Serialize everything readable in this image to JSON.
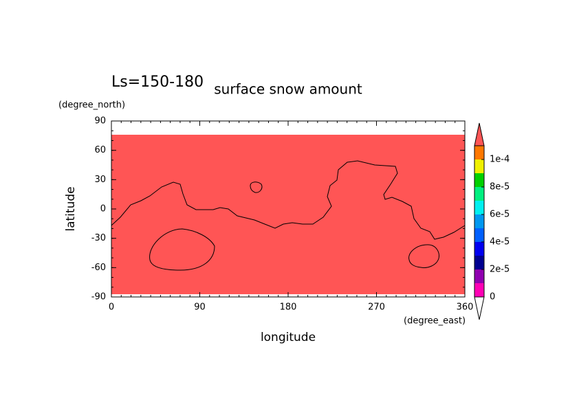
{
  "chart_data": {
    "type": "contour",
    "title": "surface snow amount",
    "subtitle": "Ls=150-180",
    "x_label": "longitude",
    "x_units": "(degree_east)",
    "y_label": "latitude",
    "y_units": "(degree_north)",
    "xlim": [
      0,
      360
    ],
    "xticks": [
      0,
      90,
      180,
      270,
      360
    ],
    "ylim": [
      -90,
      90
    ],
    "yticks": [
      -90,
      -60,
      -30,
      0,
      30,
      60,
      90
    ],
    "fill_color": "#ff5555",
    "colorbar": {
      "levels": [
        0,
        1e-05,
        2e-05,
        3e-05,
        4e-05,
        5e-05,
        6e-05,
        7e-05,
        8e-05,
        9e-05,
        0.0001,
        0.00011
      ],
      "colors": [
        "#ff00b4",
        "#9000b0",
        "#000090",
        "#0000f0",
        "#0060ff",
        "#0098f0",
        "#00f0f0",
        "#00f080",
        "#00d000",
        "#f0f000",
        "#ff7800"
      ],
      "over_color": "#ff5555",
      "ticks": [
        0,
        {
          "value": 2e-05,
          "label": "2e-5"
        },
        {
          "value": 4e-05,
          "label": "4e-5"
        },
        {
          "value": 6e-05,
          "label": "6e-5"
        },
        {
          "value": 8e-05,
          "label": "8e-5"
        },
        {
          "value": 0.0001,
          "label": "1e-4"
        }
      ]
    }
  }
}
